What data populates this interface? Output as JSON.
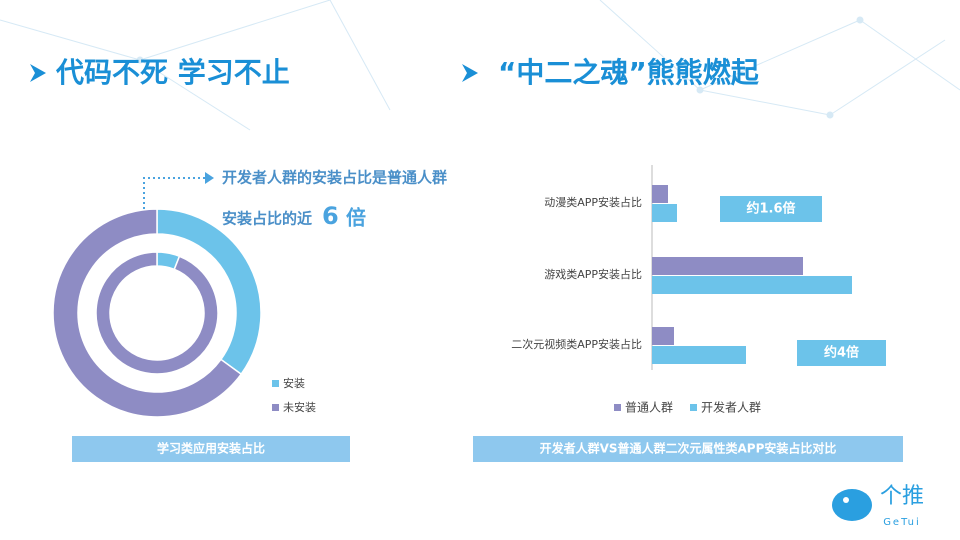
{
  "headings": [
    "代码不死 学习不止",
    "“中二之魂”熊熊燃起"
  ],
  "logo": {
    "name": "个推",
    "sub": "GeTui"
  },
  "chart_data": [
    {
      "type": "donut",
      "categories": [
        "安装",
        "未安装"
      ],
      "colors": [
        "#6cc3ea",
        "#8e8cc4"
      ],
      "series": [
        {
          "values": [
            35,
            65
          ]
        },
        {
          "values": [
            6,
            94
          ]
        }
      ],
      "annotation": [
        "开发者人群的安装占比是普通人群",
        "安装占比的近",
        "6",
        "倍"
      ],
      "caption": "学习类应用安装占比"
    },
    {
      "type": "hbar",
      "categories": [
        "动漫类APP安装占比",
        "游戏类APP安装占比",
        "二次元视频类APP安装占比"
      ],
      "series": [
        {
          "name": "普通人群",
          "color": "#8e8cc4",
          "values": [
            1.6,
            15.1,
            2.2
          ]
        },
        {
          "name": "开发者人群",
          "color": "#6cc3ea",
          "values": [
            2.5,
            20,
            9.4
          ]
        }
      ],
      "xlim": [
        0,
        25
      ],
      "annotations": [
        "约1.6倍",
        "约4倍"
      ],
      "caption": "开发者人群VS普通人群二次元属性类APP安装占比对比"
    }
  ]
}
